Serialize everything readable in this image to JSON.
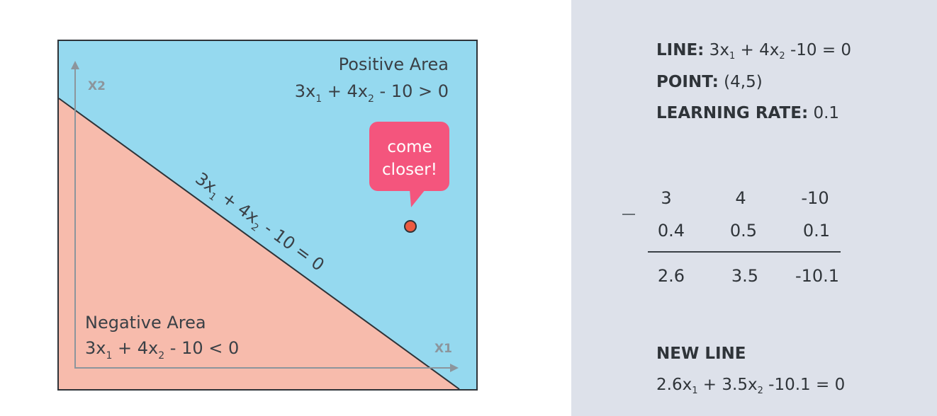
{
  "colors": {
    "positive_area": "#95d9ef",
    "negative_area": "#f7bbac",
    "bubble": "#f4557d",
    "point": "#ec5b41",
    "panel": "#dde1ea"
  },
  "diagram": {
    "positive_title": "Positive Area",
    "positive_eq": [
      "3x",
      "1",
      " + 4x",
      "2",
      " - 10 > 0"
    ],
    "negative_title": "Negative Area",
    "negative_eq": [
      "3x",
      "1",
      " + 4x",
      "2",
      " - 10 < 0"
    ],
    "boundary_eq": [
      "3x",
      "1",
      " + 4x",
      "2",
      " - 10 = 0"
    ],
    "x1_label": "X1",
    "x2_label": "X2",
    "bubble_line1": "come",
    "bubble_line2": "closer!"
  },
  "panel": {
    "line_label": "LINE:",
    "line_eq": {
      "a": " 3x",
      "s1": "1",
      "b": " + 4x",
      "s2": "2",
      "c": " -10 = 0"
    },
    "point_label": "POINT:",
    "point_value": " (4,5)",
    "rate_label": "LEARNING RATE:",
    "rate_value": " 0.1",
    "table": {
      "row1": [
        "3",
        "4",
        "-10"
      ],
      "row2": [
        "0.4",
        "0.5",
        "0.1"
      ],
      "result": [
        "2.6",
        "3.5",
        "-10.1"
      ]
    },
    "new_line_label": "NEW LINE",
    "new_line_eq": {
      "a": "2.6x",
      "s1": "1",
      "b": " + 3.5x",
      "s2": "2",
      "c": " -10.1 = 0"
    }
  }
}
